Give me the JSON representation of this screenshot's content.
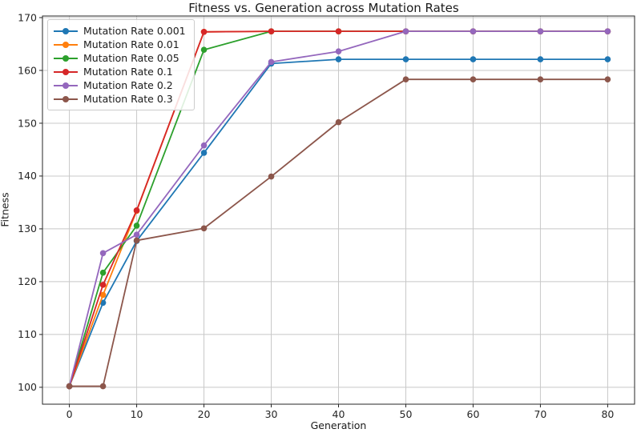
{
  "chart_data": {
    "type": "line",
    "title": "Fitness vs. Generation across Mutation Rates",
    "xlabel": "Generation",
    "ylabel": "Fitness",
    "x": [
      0,
      5,
      10,
      20,
      30,
      40,
      50,
      60,
      70,
      80
    ],
    "series": [
      {
        "name": "Mutation Rate 0.001",
        "color": "#1f77b4",
        "values": [
          100.2,
          116.0,
          127.7,
          144.4,
          161.3,
          162.1,
          162.1,
          162.1,
          162.1,
          162.1
        ]
      },
      {
        "name": "Mutation Rate 0.01",
        "color": "#ff7f0e",
        "values": [
          100.2,
          117.5,
          133.4,
          167.3,
          167.4,
          167.4,
          167.4,
          167.4,
          167.4,
          167.4
        ]
      },
      {
        "name": "Mutation Rate 0.05",
        "color": "#2ca02c",
        "values": [
          100.2,
          121.7,
          130.6,
          163.9,
          167.4,
          167.4,
          167.4,
          167.4,
          167.4,
          167.4
        ]
      },
      {
        "name": "Mutation Rate 0.1",
        "color": "#d62728",
        "values": [
          100.2,
          119.4,
          133.5,
          167.3,
          167.4,
          167.4,
          167.4,
          167.4,
          167.4,
          167.4
        ]
      },
      {
        "name": "Mutation Rate 0.2",
        "color": "#9467bd",
        "values": [
          100.2,
          125.4,
          128.9,
          145.8,
          161.6,
          163.6,
          167.4,
          167.4,
          167.4,
          167.4
        ]
      },
      {
        "name": "Mutation Rate 0.3",
        "color": "#8c564b",
        "values": [
          100.2,
          100.2,
          127.8,
          130.1,
          139.9,
          150.2,
          158.3,
          158.3,
          158.3,
          158.3
        ]
      }
    ],
    "xticks": [
      0,
      10,
      20,
      30,
      40,
      50,
      60,
      70,
      80
    ],
    "yticks": [
      100,
      110,
      120,
      130,
      140,
      150,
      160,
      170
    ],
    "xlim": [
      -4,
      84
    ],
    "ylim": [
      96.8,
      170.3
    ],
    "grid": true,
    "legend_position": "upper left",
    "marker": "circle"
  },
  "style": {
    "grid_color": "#c8c8c8",
    "spine_color": "#262626",
    "tick_label_color": "#262626",
    "background": "#ffffff"
  }
}
